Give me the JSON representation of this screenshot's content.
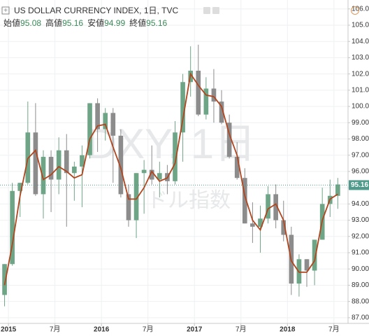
{
  "chart_data": {
    "type": "candlestick",
    "title": "US DOLLAR CURRENCY INDEX, 1日, TVC",
    "ohlc_legend": [
      {
        "label": "始値",
        "value": "95.08"
      },
      {
        "label": "高値",
        "value": "95.16"
      },
      {
        "label": "安値",
        "value": "94.99"
      },
      {
        "label": "終値",
        "value": "95.16"
      }
    ],
    "watermark": [
      "DXY, 1日",
      "ドル指数"
    ],
    "x": [
      "2014-12",
      "2015-01",
      "2015-02",
      "2015-03",
      "2015-04",
      "2015-05",
      "2015-06",
      "2015-07",
      "2015-08",
      "2015-09",
      "2015-10",
      "2015-11",
      "2015-12",
      "2016-01",
      "2016-02",
      "2016-03",
      "2016-04",
      "2016-05",
      "2016-06",
      "2016-07",
      "2016-08",
      "2016-09",
      "2016-10",
      "2016-11",
      "2016-12",
      "2017-01",
      "2017-02",
      "2017-03",
      "2017-04",
      "2017-05",
      "2017-06",
      "2017-07",
      "2017-08",
      "2017-09",
      "2017-10",
      "2017-11",
      "2017-12",
      "2018-01",
      "2018-02",
      "2018-03",
      "2018-04",
      "2018-05",
      "2018-06",
      "2018-07"
    ],
    "open": [
      88.4,
      90.3,
      94.8,
      95.3,
      98.4,
      94.6,
      96.9,
      95.5,
      97.3,
      95.9,
      96.3,
      97.0,
      100.2,
      98.6,
      99.6,
      98.2,
      94.6,
      93.0,
      95.9,
      96.1,
      95.5,
      95.9,
      95.4,
      98.4,
      101.5,
      102.2,
      99.5,
      101.1,
      100.3,
      99.0,
      96.9,
      95.6,
      92.8,
      92.6,
      93.1,
      94.6,
      93.0,
      92.1,
      89.1,
      90.6,
      89.9,
      91.8,
      94.0,
      94.5
    ],
    "high": [
      90.3,
      95.3,
      95.3,
      100.3,
      100.2,
      97.3,
      97.3,
      98.1,
      98.3,
      96.6,
      97.6,
      100.2,
      100.5,
      99.9,
      99.9,
      98.6,
      95.2,
      95.9,
      96.7,
      97.6,
      96.6,
      96.4,
      99.1,
      102.0,
      103.7,
      103.8,
      101.8,
      102.3,
      101.0,
      99.5,
      97.8,
      96.2,
      94.1,
      93.9,
      95.1,
      95.2,
      94.2,
      92.6,
      90.9,
      90.6,
      91.8,
      95.0,
      95.5,
      95.6
    ],
    "low": [
      87.7,
      90.2,
      93.2,
      95.2,
      94.5,
      93.1,
      93.5,
      94.6,
      92.6,
      94.2,
      93.8,
      96.8,
      97.2,
      97.9,
      95.3,
      94.4,
      92.6,
      91.9,
      93.4,
      95.2,
      94.4,
      94.6,
      95.2,
      96.6,
      100.6,
      99.4,
      99.2,
      99.0,
      98.9,
      96.8,
      95.5,
      92.8,
      91.6,
      91.0,
      92.8,
      92.5,
      91.7,
      88.4,
      88.3,
      88.9,
      89.0,
      91.8,
      93.2,
      93.7
    ],
    "close": [
      90.3,
      94.8,
      95.3,
      98.4,
      94.6,
      96.9,
      95.5,
      97.3,
      95.9,
      96.3,
      97.0,
      100.2,
      98.6,
      99.6,
      98.2,
      94.6,
      93.0,
      95.9,
      96.1,
      95.5,
      95.9,
      95.4,
      98.4,
      101.5,
      102.2,
      99.5,
      101.1,
      100.3,
      99.0,
      96.9,
      95.6,
      92.8,
      92.6,
      93.1,
      94.6,
      93.0,
      92.1,
      89.1,
      90.6,
      89.9,
      91.8,
      94.0,
      94.5,
      95.2
    ],
    "up_color": "#6fa587",
    "down_color": "#8c8c8c",
    "moving_average": {
      "color": "#b0451e",
      "values": [
        89.0,
        91.5,
        94.5,
        96.8,
        97.3,
        95.5,
        95.8,
        96.3,
        96.0,
        95.6,
        95.8,
        98.0,
        98.8,
        98.9,
        97.5,
        96.2,
        94.3,
        94.3,
        95.0,
        96.0,
        95.4,
        95.6,
        96.5,
        99.2,
        102.0,
        101.3,
        100.7,
        100.6,
        100.0,
        98.3,
        97.0,
        94.5,
        93.0,
        92.4,
        93.7,
        94.0,
        93.0,
        90.5,
        89.8,
        89.8,
        90.5,
        93.0,
        94.3,
        94.6
      ]
    },
    "price_line": {
      "value": 95.16,
      "label": "95.16",
      "color": "#4f9a8a"
    },
    "xlim": [
      "2014-12",
      "2018-09"
    ],
    "xticks": [
      {
        "value": "2015-01",
        "label": "2015"
      },
      {
        "value": "2015-07",
        "label": "7月"
      },
      {
        "value": "2016-01",
        "label": "2016"
      },
      {
        "value": "2016-07",
        "label": "7月"
      },
      {
        "value": "2017-01",
        "label": "2017"
      },
      {
        "value": "2017-07",
        "label": "7月"
      },
      {
        "value": "2018-01",
        "label": "2018"
      },
      {
        "value": "2018-07",
        "label": "7月"
      }
    ],
    "ylim": [
      86.65,
      106.55
    ],
    "yticks": [
      {
        "value": 87,
        "label": "87.00"
      },
      {
        "value": 88,
        "label": "88.00"
      },
      {
        "value": 89,
        "label": "89.00"
      },
      {
        "value": 90,
        "label": "90.00"
      },
      {
        "value": 91,
        "label": "91.00"
      },
      {
        "value": 92,
        "label": "92.00"
      },
      {
        "value": 93,
        "label": "93.00"
      },
      {
        "value": 94,
        "label": "94.00"
      },
      {
        "value": 95,
        "label": "95.00"
      },
      {
        "value": 96,
        "label": "96.00"
      },
      {
        "value": 97,
        "label": "97.00"
      },
      {
        "value": 98,
        "label": "98.00"
      },
      {
        "value": 99,
        "label": "99.00"
      },
      {
        "value": 100,
        "label": "100.00"
      },
      {
        "value": 101,
        "label": "101.00"
      },
      {
        "value": 102,
        "label": "102.00"
      },
      {
        "value": 103,
        "label": "103.00"
      },
      {
        "value": 104,
        "label": "104.00"
      },
      {
        "value": 105,
        "label": "105.00"
      },
      {
        "value": 106,
        "label": "106.00"
      }
    ],
    "grid": true
  }
}
